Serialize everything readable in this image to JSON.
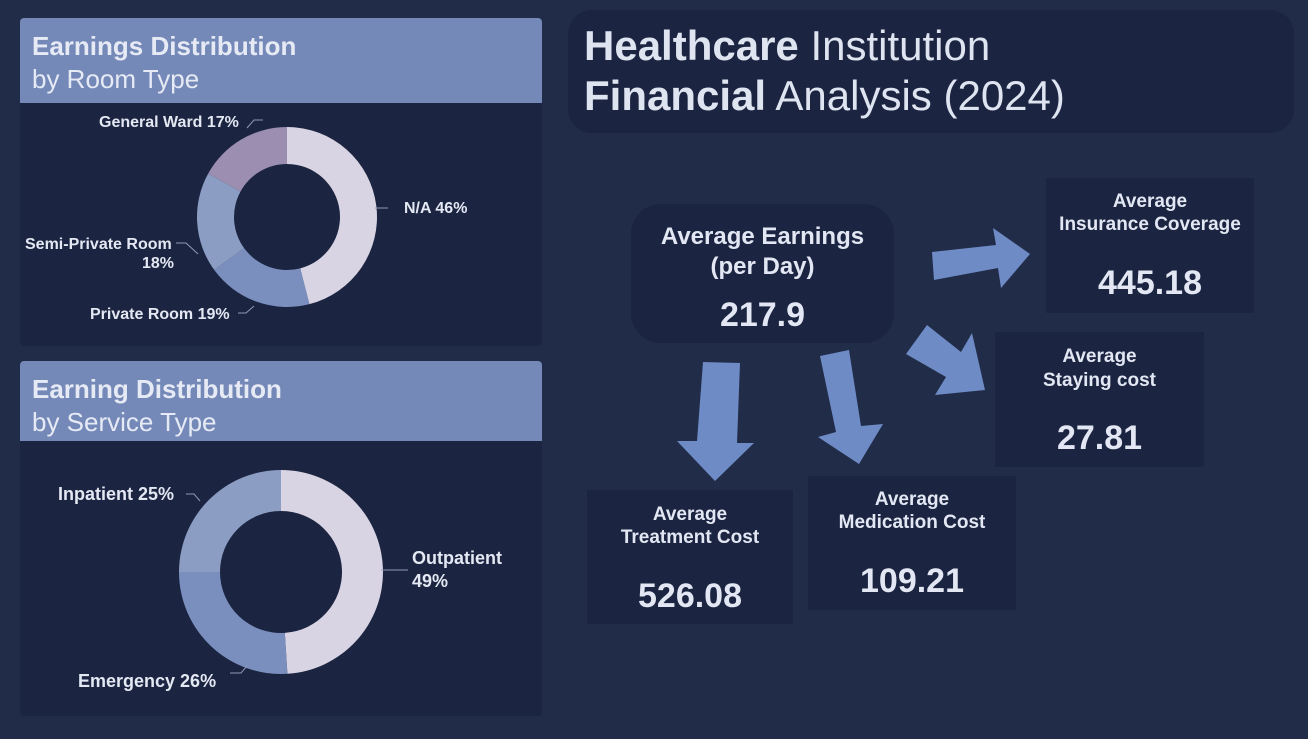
{
  "colors": {
    "background": "#212c48",
    "panel": "#1b2440",
    "header": "#7589b8",
    "arrow": "#6e8bc6",
    "slice_light": "#d9d4e3",
    "slice_mid": "#7b8fbf",
    "slice_pale": "#8c9dc3",
    "slice_mauve": "#9c8eb0"
  },
  "title": {
    "line1_bold": "Healthcare",
    "line1_rest": " Institution",
    "line2_bold": "Financial",
    "line2_rest": " Analysis (2024)"
  },
  "room_panel": {
    "title_bold": "Earnings Distribution",
    "title_sub": "by Room Type"
  },
  "service_panel": {
    "title_bold": "Earning Distribution",
    "title_sub": "by Service Type"
  },
  "chart_data": [
    {
      "type": "pie",
      "title": "Earnings Distribution by Room Type",
      "categories": [
        "N/A",
        "Private Room",
        "Semi-Private Room",
        "General Ward"
      ],
      "values": [
        46,
        19,
        18,
        17
      ],
      "labels": [
        "N/A 46%",
        "Private Room 19%",
        "Semi-Private Room",
        "18%",
        "General Ward 17%"
      ],
      "colors": [
        "#d9d4e3",
        "#7b8fbf",
        "#8c9dc3",
        "#9c8eb0"
      ]
    },
    {
      "type": "pie",
      "title": "Earning Distribution by Service Type",
      "categories": [
        "Outpatient",
        "Emergency",
        "Inpatient"
      ],
      "values": [
        49,
        26,
        25
      ],
      "labels": [
        "Outpatient",
        "49%",
        "Emergency 26%",
        "Inpatient 25%"
      ],
      "colors": [
        "#d9d4e3",
        "#7b8fbf",
        "#8c9dc3"
      ]
    }
  ],
  "kpis": {
    "earnings": {
      "label1": "Average Earnings",
      "label2": "(per Day)",
      "value": "217.9"
    },
    "insurance": {
      "label1": "Average",
      "label2": "Insurance Coverage",
      "value": "445.18"
    },
    "staying": {
      "label1": "Average",
      "label2": "Staying cost",
      "value": "27.81"
    },
    "treatment": {
      "label1": "Average",
      "label2": "Treatment Cost",
      "value": "526.08"
    },
    "medication": {
      "label1": "Average",
      "label2": "Medication Cost",
      "value": "109.21"
    }
  }
}
